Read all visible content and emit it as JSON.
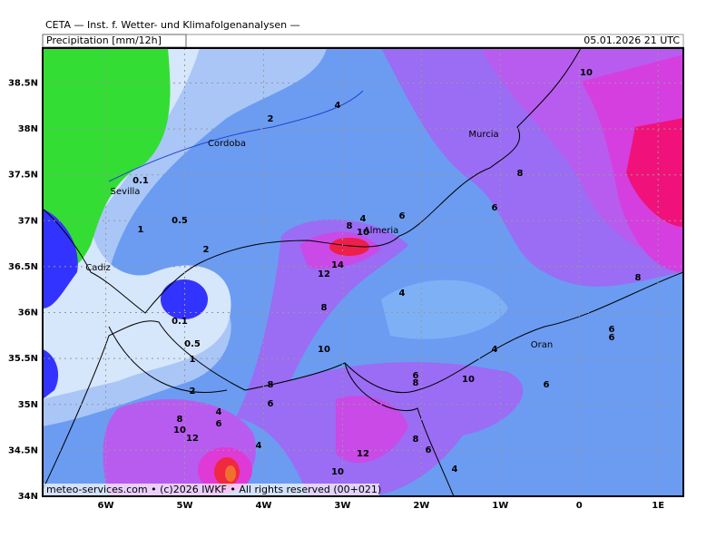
{
  "header": {
    "title": "CETA — Inst. f. Wetter- und Klimafolgenanalysen —",
    "product": "Precipitation [mm/12h]",
    "valid": "05.01.2026 21 UTC"
  },
  "map": {
    "lonlim": [
      -6.8,
      1.32
    ],
    "latlim": [
      34,
      38.88
    ],
    "lon_ticks": [
      {
        "value": -6,
        "label": "6W"
      },
      {
        "value": -5,
        "label": "5W"
      },
      {
        "value": -4,
        "label": "4W"
      },
      {
        "value": -3,
        "label": "3W"
      },
      {
        "value": -2,
        "label": "2W"
      },
      {
        "value": -1,
        "label": "1W"
      },
      {
        "value": 0,
        "label": "0"
      },
      {
        "value": 1,
        "label": "1E"
      }
    ],
    "lat_ticks": [
      {
        "value": 38.5,
        "label": "38.5N"
      },
      {
        "value": 38,
        "label": "38N"
      },
      {
        "value": 37.5,
        "label": "37.5N"
      },
      {
        "value": 37,
        "label": "37N"
      },
      {
        "value": 36.5,
        "label": "36.5N"
      },
      {
        "value": 36,
        "label": "36N"
      },
      {
        "value": 35.5,
        "label": "35.5N"
      },
      {
        "value": 35,
        "label": "35N"
      },
      {
        "value": 34.5,
        "label": "34.5N"
      },
      {
        "value": 34,
        "label": "34N"
      }
    ],
    "cities": [
      "Sevilla",
      "Cordoba",
      "Murcia",
      "Almeria",
      "Cadiz",
      "Oran"
    ],
    "contour_labels": [
      2,
      4,
      0.1,
      0.5,
      1,
      2,
      8,
      4,
      10,
      6,
      6,
      8,
      10,
      14,
      12,
      4,
      8,
      0.1,
      0.5,
      1,
      10,
      8,
      6,
      6,
      4,
      6,
      8,
      10,
      6,
      2,
      8,
      6,
      4,
      6,
      8,
      10,
      12,
      4,
      8,
      6,
      12,
      4,
      10
    ]
  },
  "footer": "meteo-services.com • (c)2026 IWKF • All rights reserved (00+021)"
}
